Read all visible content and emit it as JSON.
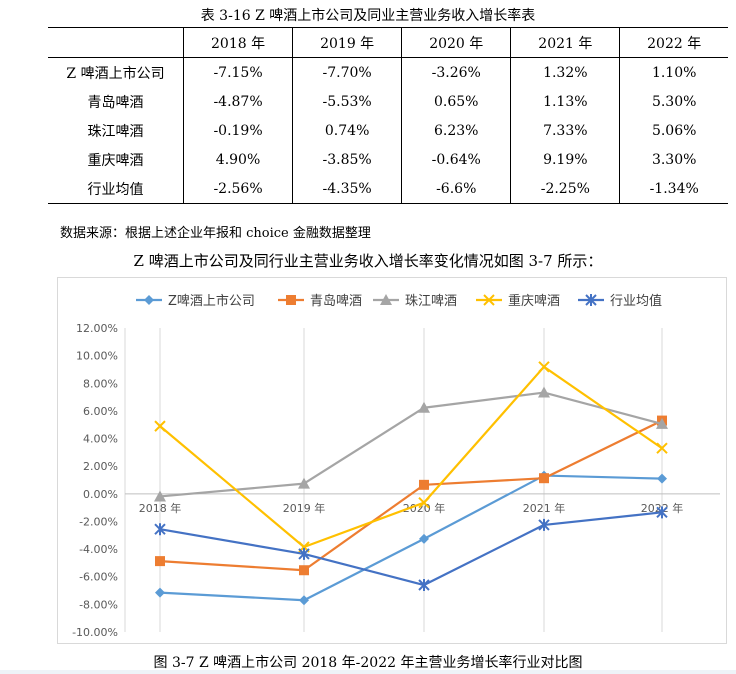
{
  "table": {
    "caption": "表 3-16  Z 啤酒上市公司及同业主营业务收入增长率表",
    "columns": [
      "",
      "2018 年",
      "2019 年",
      "2020 年",
      "2021 年",
      "2022 年"
    ],
    "rows": [
      {
        "name": "Z 啤酒上市公司",
        "values": [
          "-7.15%",
          "-7.70%",
          "-3.26%",
          "1.32%",
          "1.10%"
        ]
      },
      {
        "name": "青岛啤酒",
        "values": [
          "-4.87%",
          "-5.53%",
          "0.65%",
          "1.13%",
          "5.30%"
        ]
      },
      {
        "name": "珠江啤酒",
        "values": [
          "-0.19%",
          "0.74%",
          "6.23%",
          "7.33%",
          "5.06%"
        ]
      },
      {
        "name": "重庆啤酒",
        "values": [
          "4.90%",
          "-3.85%",
          "-0.64%",
          "9.19%",
          "3.30%"
        ]
      },
      {
        "name": "行业均值",
        "values": [
          "-2.56%",
          "-4.35%",
          "-6.6%",
          "-2.25%",
          "-1.34%"
        ]
      }
    ]
  },
  "source_note": "数据来源：根据上述企业年报和 choice 金融数据整理",
  "paragraph": "Z 啤酒上市公司及同行业主营业务收入增长率变化情况如图 3-7 所示：",
  "figure_caption": "图 3-7  Z 啤酒上市公司 2018 年-2022 年主营业务增长率行业对比图",
  "chart_data": {
    "type": "line",
    "categories": [
      "2018 年",
      "2019 年",
      "2020 年",
      "2021 年",
      "2022 年"
    ],
    "ylim": [
      -10,
      12
    ],
    "yticks": [
      "12.00%",
      "10.00%",
      "8.00%",
      "6.00%",
      "4.00%",
      "2.00%",
      "0.00%",
      "-2.00%",
      "-4.00%",
      "-6.00%",
      "-8.00%",
      "-10.00%"
    ],
    "grid": "vertical",
    "legend_position": "top",
    "series": [
      {
        "name": "Z啤酒上市公司",
        "marker": "diamond",
        "color": "#5b9bd5",
        "values": [
          -7.15,
          -7.7,
          -3.26,
          1.32,
          1.1
        ]
      },
      {
        "name": "青岛啤酒",
        "marker": "square",
        "color": "#ed7d31",
        "values": [
          -4.87,
          -5.53,
          0.65,
          1.13,
          5.3
        ]
      },
      {
        "name": "珠江啤酒",
        "marker": "triangle",
        "color": "#a5a5a5",
        "values": [
          -0.19,
          0.74,
          6.23,
          7.33,
          5.06
        ]
      },
      {
        "name": "重庆啤酒",
        "marker": "x",
        "color": "#ffc000",
        "values": [
          4.9,
          -3.85,
          -0.64,
          9.19,
          3.3
        ]
      },
      {
        "name": "行业均值",
        "marker": "star",
        "color": "#4472c4",
        "values": [
          -2.56,
          -4.35,
          -6.6,
          -2.25,
          -1.34
        ]
      }
    ]
  }
}
